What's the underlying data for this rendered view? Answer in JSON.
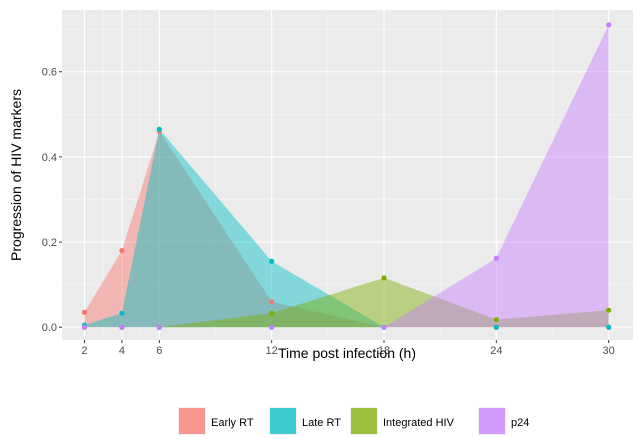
{
  "chart_data": {
    "type": "area",
    "xlabel": "Time post infection (h)",
    "ylabel": "Progression of HIV markers",
    "x": [
      2,
      4,
      6,
      12,
      18,
      24,
      30
    ],
    "x_ticks": [
      "2",
      "4",
      "6",
      "12",
      "18",
      "24",
      "30"
    ],
    "y_ticks": [
      "0.0",
      "0.2",
      "0.4",
      "0.6"
    ],
    "y_tick_values": [
      0,
      0.2,
      0.4,
      0.6
    ],
    "xlim": [
      0.8,
      31.3
    ],
    "ylim": [
      -0.03,
      0.745
    ],
    "grid": true,
    "legend_position": "bottom",
    "series": [
      {
        "name": "Early RT",
        "color": "#F8766D",
        "values": [
          0.035,
          0.18,
          0.46,
          0.06,
          0.0,
          0.0,
          0.0
        ]
      },
      {
        "name": "Late RT",
        "color": "#00BFC4",
        "values": [
          0.005,
          0.033,
          0.465,
          0.155,
          0.0,
          0.0,
          0.0
        ]
      },
      {
        "name": "Integrated HIV",
        "color": "#7CAE00",
        "values": [
          0.0,
          0.0,
          0.0,
          0.033,
          0.116,
          0.018,
          0.04
        ]
      },
      {
        "name": "p24",
        "color": "#C77CFF",
        "values": [
          0.0,
          0.0,
          0.0,
          0.0,
          0.0,
          0.162,
          0.71
        ]
      }
    ]
  }
}
